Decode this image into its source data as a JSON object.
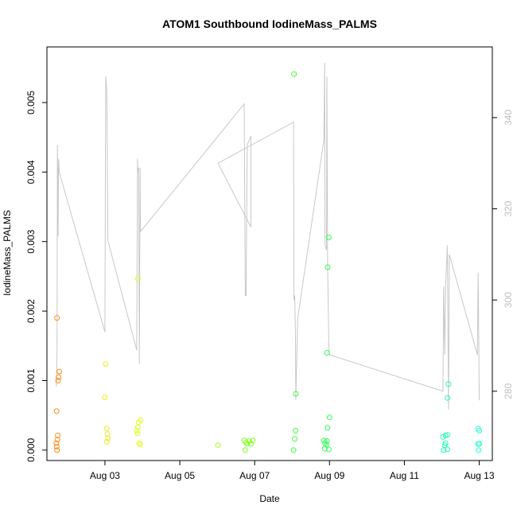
{
  "chart_data": {
    "type": "scatter",
    "title": "ATOM1 Southbound IodineMass_PALMS",
    "xlabel": "Date",
    "ylabel": "IodineMass_PALMS",
    "x_unit": "days in August 2016",
    "xlim": [
      1.45,
      13.35
    ],
    "ylim": [
      -0.00015,
      0.0058
    ],
    "x_ticks": [
      3,
      5,
      7,
      9,
      11,
      13
    ],
    "x_tick_labels": [
      "Aug 03",
      "Aug 05",
      "Aug 07",
      "Aug 09",
      "Aug 11",
      "Aug 13"
    ],
    "y_ticks": [
      0,
      0.001,
      0.002,
      0.003,
      0.004,
      0.005
    ],
    "y_tick_labels": [
      "0.000",
      "0.001",
      "0.002",
      "0.003",
      "0.004",
      "0.005"
    ],
    "y2_ylim": [
      264.8,
      355.5
    ],
    "y2_ticks": [
      280,
      300,
      320,
      340
    ],
    "y2_tick_labels": [
      "280",
      "300",
      "320",
      "340"
    ],
    "grid": false,
    "point_style": "open circles colored by day (orange to cyan)",
    "line_color": "#c8c8c8",
    "series": [
      {
        "points": [
          {
            "x": 1.72,
            "y": 0.0019,
            "color": "#ff8c1a"
          },
          {
            "x": 1.78,
            "y": 0.00113,
            "color": "#ff8c1a"
          },
          {
            "x": 1.76,
            "y": 0.00105,
            "color": "#ff8c1a"
          },
          {
            "x": 1.75,
            "y": 0.001,
            "color": "#ff8c1a"
          },
          {
            "x": 1.71,
            "y": 0.00056,
            "color": "#ff8c1a"
          },
          {
            "x": 1.74,
            "y": 0.00021,
            "color": "#ff8c1a"
          },
          {
            "x": 1.73,
            "y": 0.00015,
            "color": "#ff8c1a"
          },
          {
            "x": 1.7,
            "y": 0.0001,
            "color": "#ff8c1a"
          },
          {
            "x": 1.71,
            "y": 5e-05,
            "color": "#ff8c1a"
          },
          {
            "x": 1.72,
            "y": 0.0,
            "color": "#ff8c1a"
          },
          {
            "x": 3.02,
            "y": 0.00124,
            "color": "#eaea20"
          },
          {
            "x": 3.0,
            "y": 0.00076,
            "color": "#eaea20"
          },
          {
            "x": 3.05,
            "y": 0.00031,
            "color": "#eaea20"
          },
          {
            "x": 3.07,
            "y": 0.00023,
            "color": "#eaea20"
          },
          {
            "x": 3.08,
            "y": 0.00017,
            "color": "#eaea20"
          },
          {
            "x": 3.05,
            "y": 0.00012,
            "color": "#eaea20"
          },
          {
            "x": 3.88,
            "y": 0.00247,
            "color": "#dfff1a"
          },
          {
            "x": 3.95,
            "y": 0.00043,
            "color": "#dfff1a"
          },
          {
            "x": 3.9,
            "y": 0.0004,
            "color": "#dfff1a"
          },
          {
            "x": 3.88,
            "y": 0.00033,
            "color": "#dfff1a"
          },
          {
            "x": 3.85,
            "y": 0.00028,
            "color": "#dfff1a"
          },
          {
            "x": 3.87,
            "y": 0.00024,
            "color": "#dfff1a"
          },
          {
            "x": 3.92,
            "y": 0.0001,
            "color": "#dfff1a"
          },
          {
            "x": 3.94,
            "y": 8e-05,
            "color": "#dfff1a"
          },
          {
            "x": 6.02,
            "y": 7e-05,
            "color": "#a8ff20"
          },
          {
            "x": 6.72,
            "y": 0.00014,
            "color": "#7fff20"
          },
          {
            "x": 6.77,
            "y": 0.00011,
            "color": "#7fff20"
          },
          {
            "x": 6.85,
            "y": 0.00013,
            "color": "#7fff20"
          },
          {
            "x": 6.95,
            "y": 0.00014,
            "color": "#7fff20"
          },
          {
            "x": 6.8,
            "y": 9e-05,
            "color": "#7fff20"
          },
          {
            "x": 6.9,
            "y": 9e-05,
            "color": "#7fff20"
          },
          {
            "x": 6.75,
            "y": 0.0,
            "color": "#7fff20"
          },
          {
            "x": 8.05,
            "y": 0.00541,
            "color": "#40ff40"
          },
          {
            "x": 8.1,
            "y": 0.00081,
            "color": "#40ff40"
          },
          {
            "x": 8.09,
            "y": 0.00028,
            "color": "#40ff40"
          },
          {
            "x": 8.07,
            "y": 0.00016,
            "color": "#40ff40"
          },
          {
            "x": 8.04,
            "y": 0.0,
            "color": "#40ff40"
          },
          {
            "x": 8.98,
            "y": 0.00306,
            "color": "#30ff5a"
          },
          {
            "x": 8.95,
            "y": 0.00263,
            "color": "#30ff5a"
          },
          {
            "x": 8.93,
            "y": 0.0014,
            "color": "#30ff5a"
          },
          {
            "x": 9.0,
            "y": 0.00047,
            "color": "#30ff5a"
          },
          {
            "x": 8.95,
            "y": 0.00032,
            "color": "#30ff5a"
          },
          {
            "x": 8.85,
            "y": 0.00014,
            "color": "#30ff5a"
          },
          {
            "x": 8.93,
            "y": 0.00013,
            "color": "#30ff5a"
          },
          {
            "x": 8.88,
            "y": 0.0001,
            "color": "#30ff5a"
          },
          {
            "x": 8.92,
            "y": 8e-05,
            "color": "#30ff5a"
          },
          {
            "x": 8.87,
            "y": 2e-05,
            "color": "#30ff5a"
          },
          {
            "x": 8.98,
            "y": 1e-05,
            "color": "#30ff5a"
          },
          {
            "x": 12.18,
            "y": 0.00095,
            "color": "#20ffaa"
          },
          {
            "x": 12.15,
            "y": 0.00075,
            "color": "#20ffaa"
          },
          {
            "x": 12.1,
            "y": 0.00021,
            "color": "#20ffaa"
          },
          {
            "x": 12.15,
            "y": 0.00022,
            "color": "#20ffaa"
          },
          {
            "x": 12.03,
            "y": 0.00019,
            "color": "#20ffaa"
          },
          {
            "x": 12.1,
            "y": 0.0001,
            "color": "#20ffaa"
          },
          {
            "x": 12.08,
            "y": 7e-05,
            "color": "#20ffaa"
          },
          {
            "x": 12.05,
            "y": 0.0,
            "color": "#20ffaa"
          },
          {
            "x": 12.15,
            "y": 1e-05,
            "color": "#20ffaa"
          },
          {
            "x": 12.97,
            "y": 0.00031,
            "color": "#20ffd0"
          },
          {
            "x": 13.0,
            "y": 0.00028,
            "color": "#20ffd0"
          },
          {
            "x": 12.97,
            "y": 9e-05,
            "color": "#20ffd0"
          },
          {
            "x": 13.0,
            "y": 9e-05,
            "color": "#20ffd0"
          },
          {
            "x": 12.98,
            "y": 0.0,
            "color": "#20ffd0"
          }
        ]
      },
      {
        "axis": "right",
        "line": [
          [
            1.7,
            281
          ],
          [
            1.72,
            288
          ],
          [
            1.73,
            334
          ],
          [
            1.74,
            327
          ],
          [
            1.75,
            314
          ],
          [
            1.76,
            331
          ],
          [
            1.78,
            328
          ],
          [
            3.0,
            293
          ],
          [
            3.02,
            349
          ],
          [
            3.05,
            346
          ],
          [
            3.08,
            313
          ],
          [
            3.85,
            289
          ],
          [
            3.87,
            331
          ],
          [
            3.88,
            328
          ],
          [
            3.9,
            329
          ],
          [
            3.92,
            286
          ],
          [
            3.94,
            329
          ],
          [
            3.95,
            315
          ],
          [
            6.72,
            343
          ],
          [
            6.75,
            301
          ],
          [
            6.77,
            301
          ],
          [
            6.8,
            334
          ],
          [
            6.85,
            335
          ],
          [
            6.9,
            336
          ],
          [
            6.9,
            316
          ],
          [
            6.02,
            330
          ],
          [
            8.04,
            339
          ],
          [
            8.05,
            300
          ],
          [
            8.07,
            301
          ],
          [
            8.09,
            292
          ],
          [
            8.1,
            278
          ],
          [
            8.15,
            296
          ],
          [
            8.85,
            335
          ],
          [
            8.87,
            352
          ],
          [
            8.88,
            312
          ],
          [
            8.92,
            311
          ],
          [
            8.93,
            349
          ],
          [
            8.95,
            308
          ],
          [
            8.98,
            290
          ],
          [
            9.0,
            288
          ],
          [
            12.03,
            280
          ],
          [
            12.05,
            303
          ],
          [
            12.08,
            288
          ],
          [
            12.1,
            303
          ],
          [
            12.15,
            312
          ],
          [
            12.18,
            276
          ],
          [
            12.2,
            310
          ],
          [
            12.95,
            288
          ],
          [
            12.97,
            306
          ],
          [
            12.98,
            298
          ],
          [
            13.0,
            278
          ]
        ]
      }
    ]
  }
}
